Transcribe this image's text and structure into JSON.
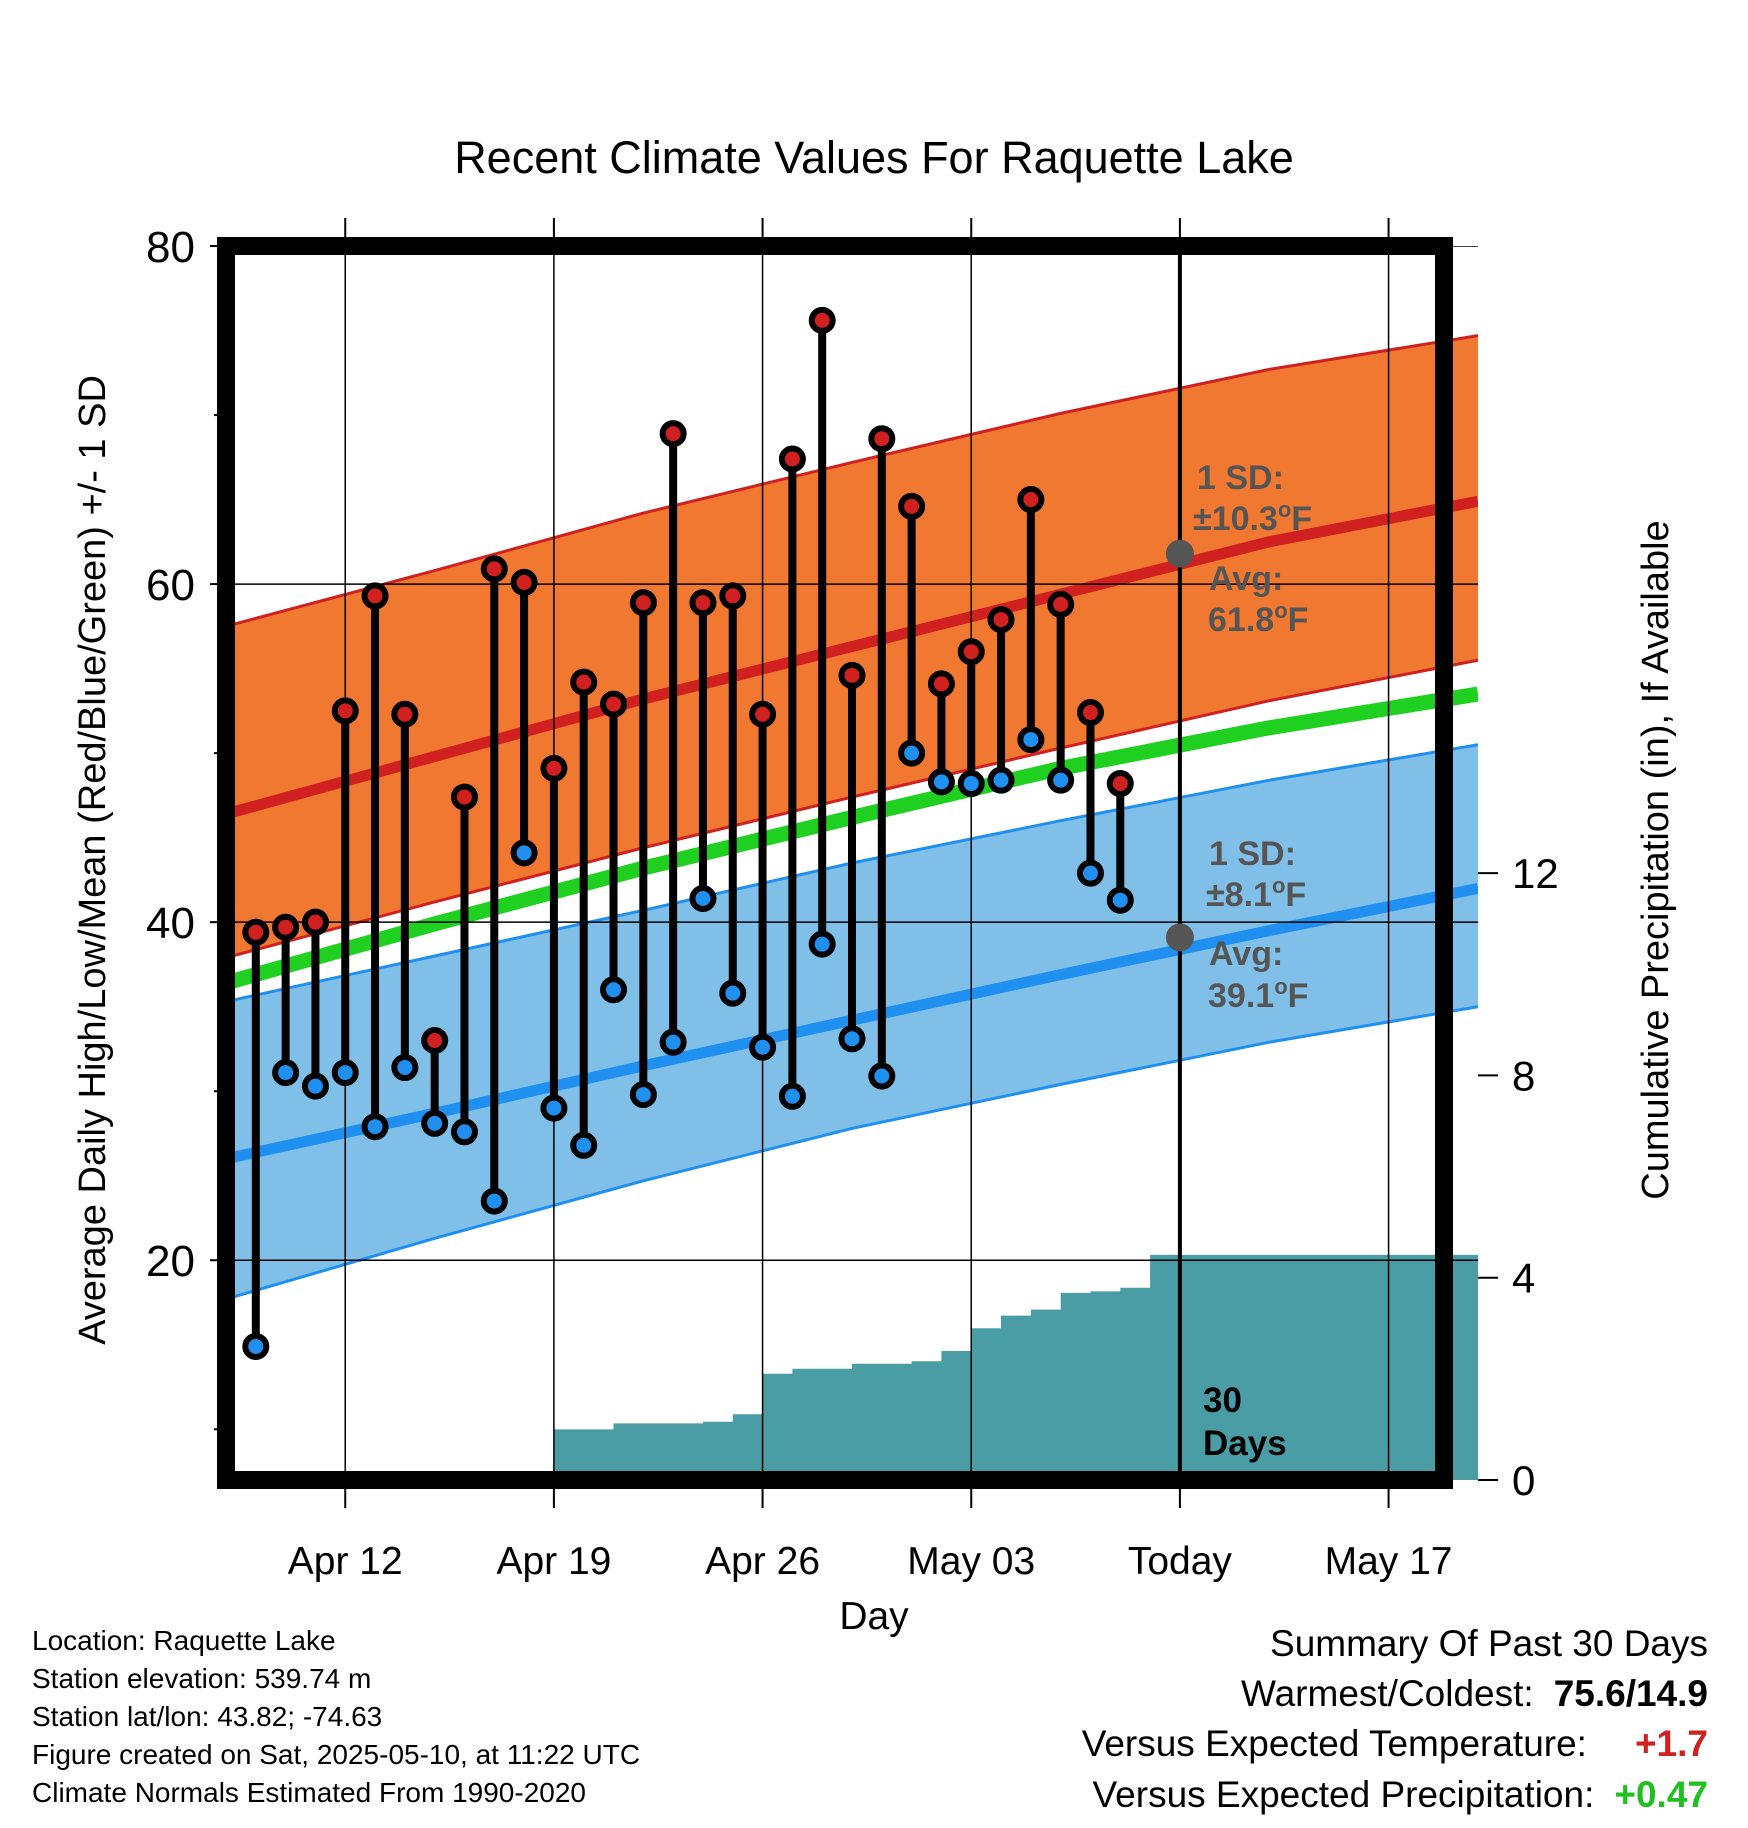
{
  "chart_data": {
    "type": "line",
    "title": "Recent Climate Values For Raquette Lake",
    "xlabel": "Day",
    "ylabel": "Average Daily High/Low/Mean (Red/Blue/Green) +/- 1 SD",
    "y2label": "Cumulative Precipitation (in), If Available",
    "xlim": [
      "2025-04-08",
      "2025-05-20"
    ],
    "ylim": [
      7,
      80
    ],
    "y2lim": [
      0,
      24.4
    ],
    "yticks": [
      "80",
      "60",
      "40",
      "20"
    ],
    "y2ticks": [
      "12",
      "8",
      "4",
      "0"
    ],
    "xtick_labels": [
      "Apr 12",
      "Apr 19",
      "Apr 26",
      "May 03",
      "Today",
      "May 17"
    ],
    "today": "2025-05-10",
    "grid": true,
    "normal_high": {
      "name": "Normal high",
      "x": [
        "2025-04-08",
        "2025-04-15",
        "2025-04-22",
        "2025-04-29",
        "2025-05-06",
        "2025-05-13",
        "2025-05-20"
      ],
      "mean": [
        46.4,
        49.8,
        53.2,
        56.3,
        59.4,
        62.5,
        64.9
      ],
      "upper": [
        57.5,
        60.8,
        64.2,
        67.2,
        70.1,
        72.7,
        74.7
      ],
      "lower": [
        37.9,
        41.2,
        44.4,
        47.4,
        50.3,
        53.1,
        55.5
      ]
    },
    "normal_mean": {
      "name": "Normal mean",
      "x": [
        "2025-04-08",
        "2025-04-15",
        "2025-04-22",
        "2025-04-29",
        "2025-05-06",
        "2025-05-13",
        "2025-05-20"
      ],
      "values": [
        36.4,
        39.9,
        43.2,
        46.2,
        49.1,
        51.5,
        53.5
      ]
    },
    "normal_low": {
      "name": "Normal low",
      "x": [
        "2025-04-08",
        "2025-04-15",
        "2025-04-22",
        "2025-04-29",
        "2025-05-06",
        "2025-05-13",
        "2025-05-20"
      ],
      "mean": [
        26.0,
        28.7,
        31.5,
        34.2,
        36.9,
        39.5,
        42.0
      ],
      "upper": [
        35.3,
        38.0,
        40.7,
        43.5,
        46.0,
        48.4,
        50.5
      ],
      "lower": [
        17.7,
        21.3,
        24.7,
        27.8,
        30.4,
        32.9,
        35.0
      ]
    },
    "observed": {
      "dates": [
        "2025-04-09",
        "2025-04-10",
        "2025-04-11",
        "2025-04-12",
        "2025-04-13",
        "2025-04-14",
        "2025-04-15",
        "2025-04-16",
        "2025-04-17",
        "2025-04-18",
        "2025-04-19",
        "2025-04-20",
        "2025-04-21",
        "2025-04-22",
        "2025-04-23",
        "2025-04-24",
        "2025-04-25",
        "2025-04-26",
        "2025-04-27",
        "2025-04-28",
        "2025-04-29",
        "2025-04-30",
        "2025-05-01",
        "2025-05-02",
        "2025-05-03",
        "2025-05-04",
        "2025-05-05",
        "2025-05-06",
        "2025-05-07",
        "2025-05-08",
        "2025-05-09"
      ],
      "high": [
        39.4,
        39.7,
        40.0,
        52.5,
        59.3,
        52.3,
        33.0,
        47.4,
        60.9,
        60.1,
        49.1,
        54.2,
        52.9,
        58.9,
        68.9,
        58.9,
        59.3,
        52.3,
        67.4,
        75.6,
        54.6,
        68.6,
        64.6,
        54.1,
        56.0,
        57.9,
        65.0,
        58.8,
        52.4,
        48.2,
        null
      ],
      "low": [
        14.9,
        31.1,
        30.3,
        31.1,
        27.9,
        31.4,
        28.1,
        27.6,
        23.5,
        44.1,
        29.0,
        26.8,
        36.0,
        29.8,
        32.9,
        41.4,
        35.8,
        32.6,
        29.7,
        38.7,
        33.1,
        30.9,
        50.0,
        48.3,
        48.2,
        48.4,
        50.8,
        48.4,
        42.9,
        41.3,
        null
      ],
      "cumulative_precip": [
        0.0,
        0.0,
        0.0,
        0.0,
        0.0,
        0.0,
        0.07,
        0.07,
        0.08,
        0.08,
        1.0,
        1.0,
        1.12,
        1.12,
        1.12,
        1.15,
        1.3,
        2.1,
        2.2,
        2.2,
        2.3,
        2.3,
        2.35,
        2.55,
        3.0,
        3.25,
        3.37,
        3.7,
        3.73,
        3.8,
        4.45,
        4.45
      ]
    },
    "precip_x": [
      "2025-04-09",
      "2025-04-10",
      "2025-04-11",
      "2025-04-12",
      "2025-04-13",
      "2025-04-14",
      "2025-04-15",
      "2025-04-16",
      "2025-04-17",
      "2025-04-18",
      "2025-04-19",
      "2025-04-20",
      "2025-04-21",
      "2025-04-22",
      "2025-04-23",
      "2025-04-24",
      "2025-04-25",
      "2025-04-26",
      "2025-04-27",
      "2025-04-28",
      "2025-04-29",
      "2025-04-30",
      "2025-05-01",
      "2025-05-02",
      "2025-05-03",
      "2025-05-04",
      "2025-05-05",
      "2025-05-06",
      "2025-05-07",
      "2025-05-08",
      "2025-05-09",
      "2025-05-20"
    ],
    "annotations": {
      "high_sd_label": "1 SD:",
      "high_sd_value": "±10.3",
      "high_avg_label": "Avg:",
      "high_avg_value": "61.8",
      "high_avg_point": 61.8,
      "low_sd_label": "1 SD:",
      "low_sd_value": "±8.1",
      "low_avg_label": "Avg:",
      "low_avg_value": "39.1",
      "low_avg_point": 39.1,
      "degree_mark": "o",
      "unit": "F",
      "window_line1": "30",
      "window_line2": "Days"
    },
    "colors": {
      "high_band": "#f07830",
      "high_line": "#d02020",
      "low_band": "#80c0e8",
      "low_line": "#2090f0",
      "mean_line": "#20d020",
      "precip": "#4a9ca5",
      "high_marker": "#d02020",
      "low_marker": "#2090f0",
      "avg_marker": "#555555",
      "annotation_text": "#555555"
    }
  },
  "info": {
    "location": "Location: Raquette Lake",
    "elevation": "Station elevation: 539.74 m",
    "latlon": "Station lat/lon: 43.82; -74.63",
    "created": "Figure created on Sat, 2025-05-10, at 11:22 UTC",
    "normals": "Climate Normals Estimated From 1990-2020"
  },
  "summary": {
    "title": "Summary Of Past 30 Days",
    "warm_cold_label": "Warmest/Coldest:",
    "warm_cold_value": "75.6/14.9",
    "temp_label": "Versus Expected Temperature:",
    "temp_value": "+1.7",
    "temp_color": "#d02020",
    "precip_label": "Versus Expected Precipitation:",
    "precip_value": "+0.47",
    "precip_color": "#20c020"
  }
}
